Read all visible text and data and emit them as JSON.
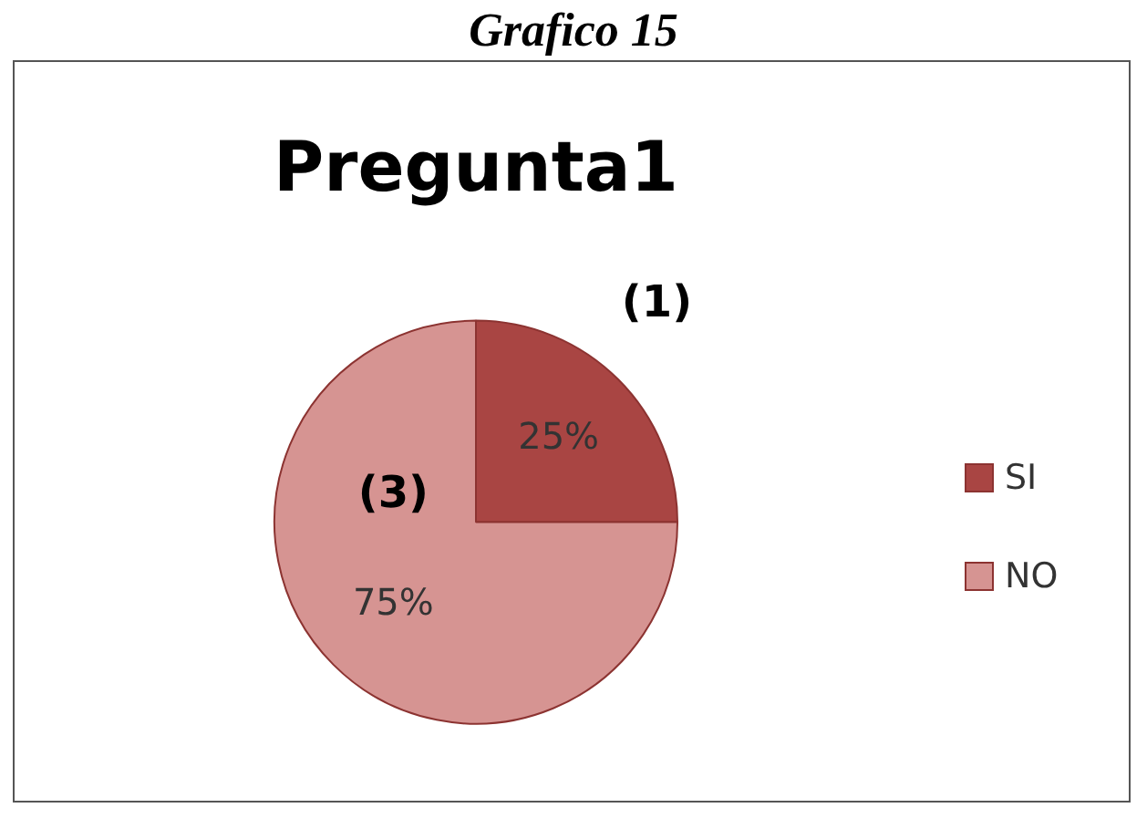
{
  "chart_data": {
    "type": "pie",
    "title": "Pregunta1",
    "categories": [
      "SI",
      "NO"
    ],
    "values": [
      25,
      75
    ],
    "colors": [
      "#a94543",
      "#d69492"
    ],
    "value_labels": [
      "25%",
      "75%"
    ],
    "legend": "right",
    "annotations": [
      {
        "text": "(1)",
        "x": "SI"
      },
      {
        "text": "(3)",
        "x": "NO"
      },
      "Grafico 15"
    ]
  }
}
